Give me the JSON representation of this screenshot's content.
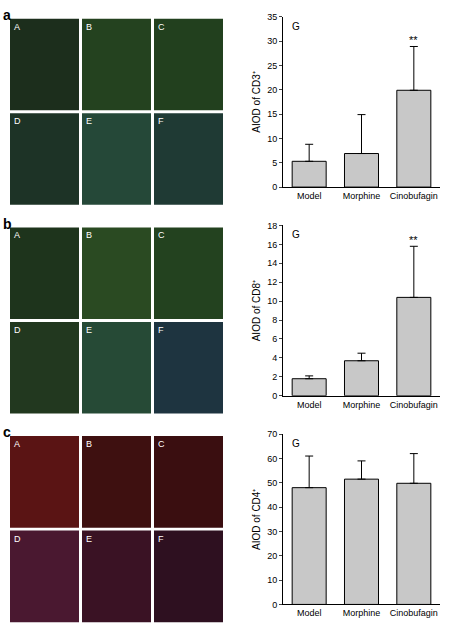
{
  "chart_data": [
    {
      "type": "bar",
      "panel_label": "a",
      "image_labels": [
        "A",
        "B",
        "C",
        "D",
        "E",
        "F"
      ],
      "chart_label": "G",
      "categories": [
        "Model",
        "Morphine",
        "Cinobufagin"
      ],
      "values": [
        5.3,
        6.9,
        19.9
      ],
      "errors": [
        3.5,
        8.0,
        9.0
      ],
      "y_label": "AIOD of CD3⁺",
      "color": "#c8c8c8",
      "ylim": [
        0,
        35
      ],
      "yticks": [
        0,
        5,
        10,
        15,
        20,
        25,
        30,
        35
      ],
      "grid": false,
      "annotations": [
        {
          "category": "Cinobufagin",
          "text": "**"
        }
      ]
    },
    {
      "type": "bar",
      "panel_label": "b",
      "image_labels": [
        "A",
        "B",
        "C",
        "D",
        "E",
        "F"
      ],
      "chart_label": "G",
      "categories": [
        "Model",
        "Morphine",
        "Cinobufagin"
      ],
      "values": [
        1.8,
        3.7,
        10.4
      ],
      "errors": [
        0.3,
        0.8,
        5.4
      ],
      "y_label": "AIOD of CD8⁺",
      "color": "#c8c8c8",
      "ylim": [
        0,
        18
      ],
      "yticks": [
        0,
        2,
        4,
        6,
        8,
        10,
        12,
        14,
        16,
        18
      ],
      "grid": false,
      "annotations": [
        {
          "category": "Cinobufagin",
          "text": "**"
        }
      ]
    },
    {
      "type": "bar",
      "panel_label": "c",
      "image_labels": [
        "A",
        "B",
        "C",
        "D",
        "E",
        "F"
      ],
      "chart_label": "G",
      "categories": [
        "Model",
        "Morphine",
        "Cinobufagin"
      ],
      "values": [
        48.0,
        51.5,
        49.8
      ],
      "errors": [
        13.0,
        7.5,
        12.2
      ],
      "y_label": "AIOD of CD4⁺",
      "color": "#c8c8c8",
      "ylim": [
        0,
        70
      ],
      "yticks": [
        0,
        10,
        20,
        30,
        40,
        50,
        60,
        70
      ],
      "grid": false,
      "annotations": []
    }
  ]
}
